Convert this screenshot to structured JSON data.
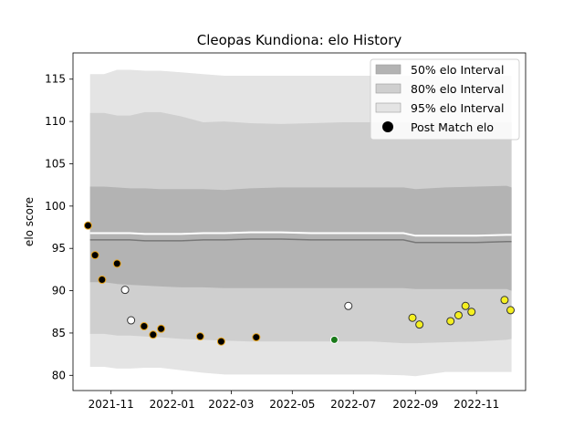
{
  "chart_data": {
    "type": "scatter",
    "title": "Cleopas Kundiona: elo History",
    "xlabel": "",
    "ylabel": "elo score",
    "xlim": [
      "2021-09-24",
      "2022-12-20"
    ],
    "ylim": [
      78.2,
      118.1
    ],
    "x_ticks": [
      "2021-11",
      "2022-01",
      "2022-03",
      "2022-05",
      "2022-07",
      "2022-09",
      "2022-11"
    ],
    "y_ticks": [
      80,
      85,
      90,
      95,
      100,
      105,
      110,
      115
    ],
    "grid": false,
    "legend_position": "top-right",
    "legend": [
      {
        "label": "50% elo Interval",
        "kind": "patch",
        "color": "#b3b3b3"
      },
      {
        "label": "80% elo Interval",
        "kind": "patch",
        "color": "#cfcfcf"
      },
      {
        "label": "95% elo Interval",
        "kind": "patch",
        "color": "#e4e4e4"
      },
      {
        "label": "Post Match elo",
        "kind": "marker",
        "color": "#000000"
      }
    ],
    "bands": {
      "x": [
        "2021-10-11",
        "2021-10-25",
        "2021-11-07",
        "2021-11-20",
        "2021-12-05",
        "2021-12-20",
        "2022-01-10",
        "2022-02-01",
        "2022-02-22",
        "2022-03-20",
        "2022-04-20",
        "2022-05-20",
        "2022-06-20",
        "2022-07-20",
        "2022-08-20",
        "2022-09-01",
        "2022-10-01",
        "2022-11-01",
        "2022-12-01",
        "2022-12-06"
      ],
      "p95_upper": [
        115.6,
        115.6,
        116.1,
        116.1,
        116.0,
        116.0,
        115.8,
        115.6,
        115.4,
        115.4,
        115.4,
        115.4,
        115.4,
        115.4,
        115.4,
        115.4,
        115.4,
        115.4,
        115.4,
        115.4
      ],
      "p80_upper": [
        111.0,
        111.0,
        110.7,
        110.7,
        111.1,
        111.1,
        110.6,
        109.9,
        110.0,
        109.8,
        109.7,
        109.8,
        109.9,
        109.9,
        109.9,
        109.9,
        109.9,
        109.9,
        109.9,
        109.9
      ],
      "p50_upper": [
        102.3,
        102.3,
        102.2,
        102.1,
        102.1,
        102.0,
        102.0,
        102.0,
        101.9,
        102.1,
        102.2,
        102.2,
        102.2,
        102.2,
        102.2,
        102.0,
        102.2,
        102.3,
        102.4,
        102.2
      ],
      "mean": [
        96.0,
        96.0,
        96.0,
        96.0,
        95.9,
        95.9,
        95.9,
        96.0,
        96.0,
        96.1,
        96.1,
        96.0,
        96.0,
        96.0,
        96.0,
        95.7,
        95.7,
        95.7,
        95.8,
        95.8
      ],
      "p50_lower": [
        91.0,
        91.0,
        90.8,
        90.7,
        90.6,
        90.5,
        90.4,
        90.4,
        90.3,
        90.3,
        90.3,
        90.3,
        90.3,
        90.3,
        90.3,
        90.2,
        90.2,
        90.2,
        90.2,
        90.0
      ],
      "p80_lower": [
        84.9,
        84.9,
        84.7,
        84.7,
        84.6,
        84.5,
        84.3,
        84.2,
        84.1,
        84.0,
        84.0,
        84.0,
        84.0,
        84.0,
        83.8,
        83.8,
        83.9,
        84.0,
        84.2,
        84.3
      ],
      "p95_lower": [
        81.0,
        81.0,
        80.8,
        80.8,
        80.9,
        80.9,
        80.6,
        80.3,
        80.1,
        80.1,
        80.1,
        80.1,
        80.1,
        80.1,
        80.0,
        79.9,
        80.4,
        80.4,
        80.4,
        80.4
      ],
      "colors": {
        "p95": "#e4e4e4",
        "p80": "#cfcfcf",
        "p50": "#b3b3b3",
        "mean": "#777777"
      }
    },
    "series": [
      {
        "marker": "circle",
        "points": [
          {
            "x": "2021-10-09",
            "y": 97.7,
            "fill": "#000000",
            "edge": "#e8a317"
          },
          {
            "x": "2021-10-16",
            "y": 94.2,
            "fill": "#000000",
            "edge": "#e8a317"
          },
          {
            "x": "2021-10-23",
            "y": 91.3,
            "fill": "#000000",
            "edge": "#e8a317"
          },
          {
            "x": "2021-11-07",
            "y": 93.2,
            "fill": "#000000",
            "edge": "#e8a317"
          },
          {
            "x": "2021-11-15",
            "y": 90.1,
            "fill": "#ffffff",
            "edge": "#333333"
          },
          {
            "x": "2021-11-21",
            "y": 86.5,
            "fill": "#ffffff",
            "edge": "#333333"
          },
          {
            "x": "2021-12-04",
            "y": 85.8,
            "fill": "#000000",
            "edge": "#e8a317"
          },
          {
            "x": "2021-12-13",
            "y": 84.8,
            "fill": "#000000",
            "edge": "#e8a317"
          },
          {
            "x": "2021-12-21",
            "y": 85.5,
            "fill": "#000000",
            "edge": "#e8a317"
          },
          {
            "x": "2022-01-29",
            "y": 84.6,
            "fill": "#000000",
            "edge": "#e8a317"
          },
          {
            "x": "2022-02-19",
            "y": 84.0,
            "fill": "#000000",
            "edge": "#e8a317"
          },
          {
            "x": "2022-03-26",
            "y": 84.5,
            "fill": "#000000",
            "edge": "#e8a317"
          },
          {
            "x": "2022-06-12",
            "y": 84.2,
            "fill": "#1a7a1a",
            "edge": "#ffffff"
          },
          {
            "x": "2022-06-26",
            "y": 88.2,
            "fill": "#ffffff",
            "edge": "#333333"
          },
          {
            "x": "2022-08-29",
            "y": 86.8,
            "fill": "#f5f020",
            "edge": "#333333"
          },
          {
            "x": "2022-09-05",
            "y": 86.0,
            "fill": "#f5f020",
            "edge": "#333333"
          },
          {
            "x": "2022-10-06",
            "y": 86.4,
            "fill": "#f5f020",
            "edge": "#333333"
          },
          {
            "x": "2022-10-14",
            "y": 87.1,
            "fill": "#f5f020",
            "edge": "#333333"
          },
          {
            "x": "2022-10-21",
            "y": 88.2,
            "fill": "#f5f020",
            "edge": "#333333"
          },
          {
            "x": "2022-10-27",
            "y": 87.5,
            "fill": "#f5f020",
            "edge": "#333333"
          },
          {
            "x": "2022-11-29",
            "y": 88.9,
            "fill": "#f5f020",
            "edge": "#333333"
          },
          {
            "x": "2022-12-05",
            "y": 87.7,
            "fill": "#f5f020",
            "edge": "#333333"
          }
        ]
      }
    ]
  }
}
